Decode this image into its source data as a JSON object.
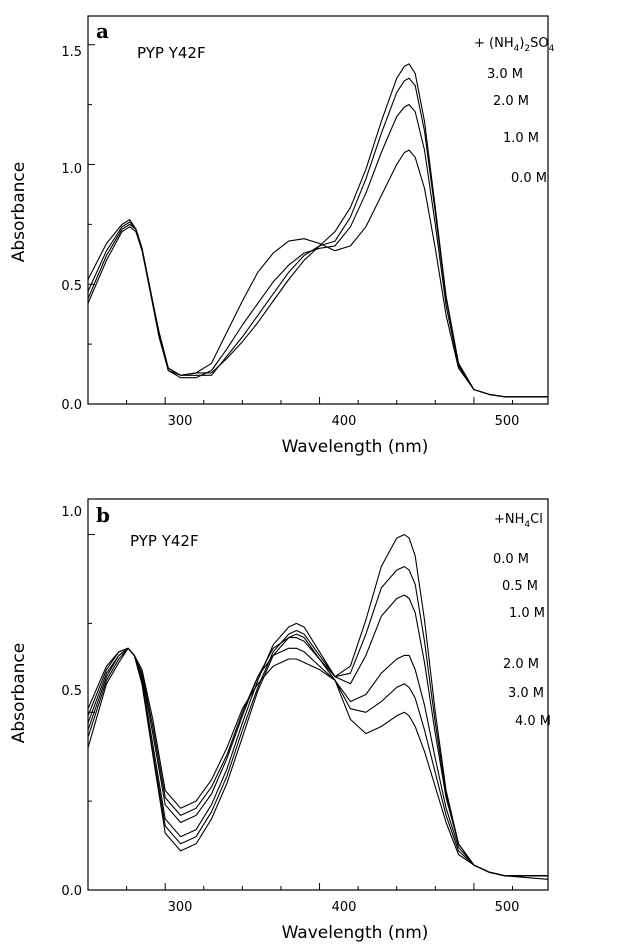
{
  "chart_data": [
    {
      "panel_label": "a",
      "sample": "PYP Y42F",
      "type": "line",
      "xlabel": "Wavelength (nm)",
      "ylabel": "Absorbance",
      "xlim": [
        250,
        548
      ],
      "ylim": [
        0,
        1.62
      ],
      "xticks": [
        300,
        400,
        500
      ],
      "yticks": [
        0.0,
        0.5,
        1.0,
        1.5
      ],
      "ytick_labels": [
        "0.0",
        "0.5",
        "1.0",
        "1.5"
      ],
      "legend_title": "+ (NH4)2SO4",
      "series": [
        {
          "name": "3.0 M",
          "x": [
            250,
            262,
            272,
            277,
            281,
            285,
            290,
            296,
            302,
            310,
            320,
            330,
            340,
            350,
            360,
            370,
            380,
            390,
            400,
            410,
            420,
            430,
            440,
            450,
            455,
            458,
            462,
            468,
            475,
            482,
            490,
            500,
            510,
            520,
            548
          ],
          "y": [
            0.42,
            0.6,
            0.72,
            0.74,
            0.72,
            0.64,
            0.48,
            0.3,
            0.15,
            0.12,
            0.13,
            0.13,
            0.19,
            0.26,
            0.34,
            0.43,
            0.52,
            0.6,
            0.66,
            0.72,
            0.82,
            0.98,
            1.18,
            1.36,
            1.41,
            1.42,
            1.38,
            1.18,
            0.82,
            0.45,
            0.17,
            0.06,
            0.04,
            0.03,
            0.03
          ]
        },
        {
          "name": "2.0 M",
          "x": [
            250,
            262,
            272,
            277,
            281,
            285,
            290,
            296,
            302,
            310,
            320,
            330,
            340,
            350,
            360,
            370,
            380,
            390,
            400,
            410,
            420,
            430,
            440,
            450,
            455,
            458,
            462,
            468,
            475,
            482,
            490,
            500,
            510,
            520,
            548
          ],
          "y": [
            0.44,
            0.62,
            0.73,
            0.75,
            0.73,
            0.65,
            0.49,
            0.3,
            0.15,
            0.12,
            0.12,
            0.12,
            0.2,
            0.28,
            0.37,
            0.46,
            0.55,
            0.62,
            0.66,
            0.68,
            0.78,
            0.94,
            1.13,
            1.3,
            1.35,
            1.36,
            1.33,
            1.14,
            0.8,
            0.44,
            0.17,
            0.06,
            0.04,
            0.03,
            0.03
          ]
        },
        {
          "name": "1.0 M",
          "x": [
            250,
            262,
            272,
            277,
            281,
            285,
            290,
            296,
            302,
            310,
            320,
            330,
            340,
            350,
            360,
            370,
            380,
            390,
            400,
            410,
            420,
            430,
            440,
            450,
            455,
            458,
            462,
            468,
            475,
            482,
            490,
            500,
            510,
            520,
            548
          ],
          "y": [
            0.47,
            0.64,
            0.74,
            0.76,
            0.73,
            0.65,
            0.49,
            0.29,
            0.14,
            0.11,
            0.11,
            0.14,
            0.23,
            0.33,
            0.42,
            0.51,
            0.58,
            0.63,
            0.65,
            0.66,
            0.74,
            0.88,
            1.05,
            1.2,
            1.24,
            1.25,
            1.22,
            1.06,
            0.75,
            0.41,
            0.16,
            0.06,
            0.04,
            0.03,
            0.03
          ]
        },
        {
          "name": "0.0 M",
          "x": [
            250,
            262,
            272,
            277,
            281,
            285,
            290,
            296,
            302,
            310,
            320,
            330,
            340,
            350,
            360,
            370,
            380,
            390,
            400,
            410,
            420,
            430,
            440,
            450,
            455,
            458,
            462,
            468,
            475,
            482,
            490,
            500,
            510,
            520,
            548
          ],
          "y": [
            0.52,
            0.67,
            0.75,
            0.77,
            0.73,
            0.65,
            0.48,
            0.28,
            0.14,
            0.12,
            0.13,
            0.17,
            0.3,
            0.43,
            0.55,
            0.63,
            0.68,
            0.69,
            0.67,
            0.64,
            0.66,
            0.74,
            0.87,
            1.0,
            1.05,
            1.06,
            1.03,
            0.9,
            0.65,
            0.37,
            0.15,
            0.06,
            0.04,
            0.03,
            0.03
          ]
        }
      ],
      "label_values": [
        1.42,
        1.36,
        1.25,
        1.06
      ]
    },
    {
      "panel_label": "b",
      "sample": "PYP Y42F",
      "type": "line",
      "xlabel": "Wavelength (nm)",
      "ylabel": "Absorbance",
      "xlim": [
        250,
        548
      ],
      "ylim": [
        0,
        1.1
      ],
      "xticks": [
        300,
        400,
        500
      ],
      "yticks": [
        0.0,
        0.5,
        1.0
      ],
      "ytick_labels": [
        "0.0",
        "0.5",
        "1.0"
      ],
      "legend_title": "+NH4Cl",
      "series": [
        {
          "name": "0.0 M",
          "x": [
            250,
            262,
            270,
            276,
            280,
            285,
            292,
            300,
            310,
            320,
            330,
            340,
            350,
            360,
            370,
            380,
            385,
            390,
            400,
            410,
            420,
            430,
            440,
            450,
            455,
            458,
            462,
            468,
            475,
            482,
            490,
            500,
            510,
            520,
            548
          ],
          "y": [
            0.4,
            0.58,
            0.64,
            0.68,
            0.66,
            0.58,
            0.38,
            0.16,
            0.11,
            0.13,
            0.2,
            0.3,
            0.43,
            0.56,
            0.66,
            0.71,
            0.72,
            0.71,
            0.65,
            0.6,
            0.63,
            0.76,
            0.91,
            0.99,
            1.0,
            0.99,
            0.94,
            0.76,
            0.5,
            0.28,
            0.13,
            0.07,
            0.05,
            0.04,
            0.03
          ]
        },
        {
          "name": "0.5 M",
          "x": [
            250,
            262,
            270,
            276,
            280,
            285,
            292,
            300,
            310,
            320,
            330,
            340,
            350,
            360,
            370,
            380,
            385,
            390,
            400,
            410,
            420,
            430,
            440,
            450,
            455,
            458,
            462,
            468,
            475,
            482,
            490,
            500,
            510,
            520,
            548
          ],
          "y": [
            0.43,
            0.59,
            0.65,
            0.68,
            0.66,
            0.58,
            0.39,
            0.18,
            0.13,
            0.15,
            0.22,
            0.32,
            0.45,
            0.57,
            0.67,
            0.72,
            0.73,
            0.72,
            0.66,
            0.6,
            0.61,
            0.72,
            0.85,
            0.9,
            0.91,
            0.9,
            0.86,
            0.7,
            0.47,
            0.27,
            0.13,
            0.07,
            0.05,
            0.04,
            0.04
          ]
        },
        {
          "name": "1.0 M",
          "x": [
            250,
            262,
            270,
            276,
            280,
            285,
            292,
            300,
            310,
            320,
            330,
            340,
            350,
            360,
            370,
            380,
            385,
            390,
            400,
            410,
            420,
            430,
            440,
            450,
            455,
            458,
            462,
            468,
            475,
            482,
            490,
            500,
            510,
            520,
            548
          ],
          "y": [
            0.45,
            0.6,
            0.66,
            0.68,
            0.66,
            0.59,
            0.41,
            0.2,
            0.15,
            0.17,
            0.24,
            0.34,
            0.47,
            0.59,
            0.69,
            0.74,
            0.75,
            0.74,
            0.67,
            0.6,
            0.58,
            0.66,
            0.77,
            0.82,
            0.83,
            0.82,
            0.78,
            0.64,
            0.44,
            0.26,
            0.13,
            0.07,
            0.05,
            0.04,
            0.04
          ]
        },
        {
          "name": "2.0 M",
          "x": [
            250,
            262,
            270,
            276,
            280,
            285,
            292,
            300,
            310,
            320,
            330,
            340,
            350,
            360,
            370,
            380,
            385,
            390,
            400,
            410,
            420,
            430,
            440,
            450,
            455,
            458,
            462,
            468,
            475,
            482,
            490,
            500,
            510,
            520,
            548
          ],
          "y": [
            0.47,
            0.61,
            0.66,
            0.68,
            0.66,
            0.6,
            0.44,
            0.24,
            0.19,
            0.21,
            0.27,
            0.37,
            0.49,
            0.6,
            0.68,
            0.71,
            0.71,
            0.7,
            0.65,
            0.59,
            0.53,
            0.55,
            0.61,
            0.65,
            0.66,
            0.66,
            0.62,
            0.52,
            0.37,
            0.23,
            0.12,
            0.07,
            0.05,
            0.04,
            0.04
          ]
        },
        {
          "name": "3.0 M",
          "x": [
            250,
            262,
            270,
            276,
            280,
            285,
            292,
            300,
            310,
            320,
            330,
            340,
            350,
            360,
            370,
            380,
            385,
            390,
            400,
            410,
            420,
            430,
            440,
            450,
            455,
            458,
            462,
            468,
            475,
            482,
            490,
            500,
            510,
            520,
            548
          ],
          "y": [
            0.49,
            0.62,
            0.67,
            0.68,
            0.66,
            0.61,
            0.46,
            0.26,
            0.21,
            0.23,
            0.29,
            0.38,
            0.5,
            0.6,
            0.66,
            0.68,
            0.68,
            0.67,
            0.63,
            0.59,
            0.51,
            0.5,
            0.53,
            0.57,
            0.58,
            0.57,
            0.54,
            0.45,
            0.33,
            0.21,
            0.11,
            0.07,
            0.05,
            0.04,
            0.04
          ]
        },
        {
          "name": "4.0 M",
          "x": [
            250,
            262,
            270,
            276,
            280,
            285,
            292,
            300,
            310,
            320,
            330,
            340,
            350,
            360,
            370,
            380,
            385,
            390,
            400,
            410,
            420,
            430,
            440,
            450,
            455,
            458,
            462,
            468,
            475,
            482,
            490,
            500,
            510,
            520,
            548
          ],
          "y": [
            0.51,
            0.63,
            0.67,
            0.68,
            0.66,
            0.62,
            0.48,
            0.28,
            0.23,
            0.25,
            0.31,
            0.4,
            0.51,
            0.58,
            0.63,
            0.65,
            0.65,
            0.64,
            0.62,
            0.59,
            0.48,
            0.44,
            0.46,
            0.49,
            0.5,
            0.49,
            0.46,
            0.39,
            0.29,
            0.19,
            0.1,
            0.07,
            0.05,
            0.04,
            0.04
          ]
        }
      ],
      "label_values": [
        0.99,
        0.9,
        0.82,
        0.66,
        0.57,
        0.49
      ]
    }
  ],
  "figure": {
    "panels": [
      {
        "letter": "a",
        "sample": "PYP Y42F",
        "xlabel": "Wavelength (nm)",
        "ylabel": "Absorbance",
        "x_ticks": [
          "300",
          "400",
          "500"
        ],
        "y_ticks": [
          "0.0",
          "0.5",
          "1.0",
          "1.5"
        ],
        "legend_prefix": "+ (NH",
        "legend_sub1": "4",
        "legend_mid": ")",
        "legend_sub2": "2",
        "legend_mid2": "SO",
        "legend_sub3": "4",
        "curve_labels": [
          "3.0 M",
          "2.0 M",
          "1.0 M",
          "0.0 M"
        ]
      },
      {
        "letter": "b",
        "sample": "PYP Y42F",
        "xlabel": "Wavelength (nm)",
        "ylabel": "Absorbance",
        "x_ticks": [
          "300",
          "400",
          "500"
        ],
        "y_ticks": [
          "0.0",
          "0.5",
          "1.0"
        ],
        "legend_prefix": "+NH",
        "legend_sub1": "4",
        "legend_mid": "Cl",
        "curve_labels": [
          "0.0 M",
          "0.5 M",
          "1.0 M",
          "2.0 M",
          "3.0 M",
          "4.0 M"
        ]
      }
    ]
  }
}
